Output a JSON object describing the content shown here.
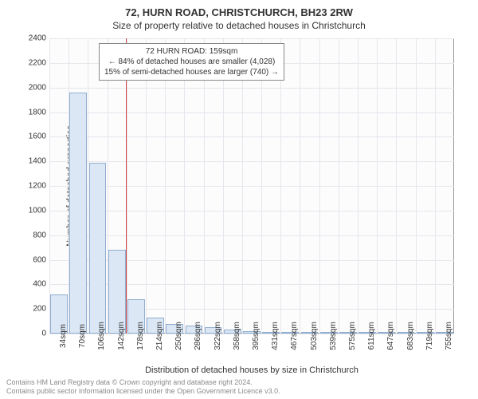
{
  "title_main": "72, HURN ROAD, CHRISTCHURCH, BH23 2RW",
  "title_sub": "Size of property relative to detached houses in Christchurch",
  "ylabel": "Number of detached properties",
  "xlabel": "Distribution of detached houses by size in Christchurch",
  "ylim": [
    0,
    2400
  ],
  "ytick_step": 200,
  "yticks": [
    0,
    200,
    400,
    600,
    800,
    1000,
    1200,
    1400,
    1600,
    1800,
    2000,
    2200,
    2400
  ],
  "xticks": [
    "34sqm",
    "70sqm",
    "106sqm",
    "142sqm",
    "178sqm",
    "214sqm",
    "250sqm",
    "286sqm",
    "322sqm",
    "358sqm",
    "395sqm",
    "431sqm",
    "467sqm",
    "503sqm",
    "539sqm",
    "575sqm",
    "611sqm",
    "647sqm",
    "683sqm",
    "719sqm",
    "755sqm"
  ],
  "bars": [
    320,
    1960,
    1390,
    680,
    280,
    130,
    80,
    65,
    50,
    35,
    18,
    10,
    8,
    5,
    4,
    3,
    2,
    1,
    1,
    1,
    1
  ],
  "bar_fill": "#dbe7f5",
  "bar_stroke": "#8faed0",
  "grid_color": "#e6e6ec",
  "bg_color": "#fcfcfd",
  "ref_value_sqm": 159,
  "ref_color": "#d04040",
  "annot_lines": [
    "72 HURN ROAD: 159sqm",
    "← 84% of detached houses are smaller (4,028)",
    "15% of semi-detached houses are larger (740) →"
  ],
  "footer_lines": [
    "Contains HM Land Registry data © Crown copyright and database right 2024.",
    "Contains public sector information licensed under the Open Government Licence v3.0."
  ]
}
